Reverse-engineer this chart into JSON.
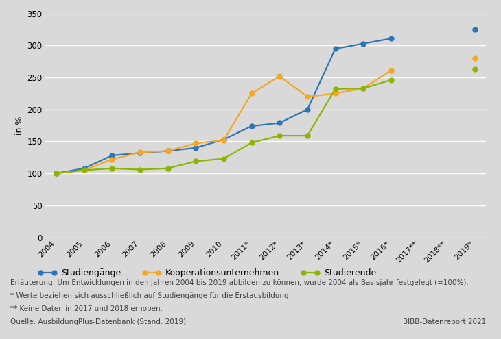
{
  "x_labels": [
    "2004",
    "2005",
    "2006",
    "2007",
    "2008",
    "2009",
    "2010",
    "2011*",
    "2012*",
    "2013*",
    "2014*",
    "2015*",
    "2016*",
    "2017**",
    "2018**",
    "2019*"
  ],
  "x_indices": [
    0,
    1,
    2,
    3,
    4,
    5,
    6,
    7,
    8,
    9,
    10,
    11,
    12,
    13,
    14,
    15
  ],
  "studiengaenge": [
    100,
    108,
    128,
    132,
    135,
    140,
    153,
    174,
    179,
    200,
    295,
    303,
    311,
    null,
    null,
    325
  ],
  "kooperationsunternehmen": [
    100,
    105,
    122,
    133,
    135,
    147,
    152,
    225,
    252,
    220,
    225,
    233,
    261,
    null,
    null,
    280
  ],
  "studierende": [
    100,
    105,
    108,
    106,
    108,
    119,
    123,
    148,
    159,
    159,
    232,
    233,
    246,
    null,
    null,
    263
  ],
  "series_colors": [
    "#2e75b6",
    "#f5a623",
    "#8db500"
  ],
  "series_labels": [
    "Studiengänge",
    "Kooperationsunternehmen",
    "Studierende"
  ],
  "ylabel": "in %",
  "ylim": [
    0,
    350
  ],
  "yticks": [
    0,
    50,
    100,
    150,
    200,
    250,
    300,
    350
  ],
  "bg_color": "#d9d9d9",
  "plot_bg_color": "#d9d9d9",
  "grid_color": "#ffffff",
  "footnote1": "Erläuterung: Um Entwicklungen in den Jahren 2004 bis 2019 abbilden zu können, wurde 2004 als Basisjahr festgelegt (=100%).",
  "footnote2": "* Werte beziehen sich ausschließlich auf Studiengänge für die Erstausbildung.",
  "footnote3": "** Keine Daten in 2017 und 2018 erhoben.",
  "footnote4": "Quelle: AusbildungPlus-Datenbank (Stand: 2019)",
  "footnote5": "BIBB-Datenreport 2021",
  "marker_size": 5,
  "linewidth": 1.6
}
